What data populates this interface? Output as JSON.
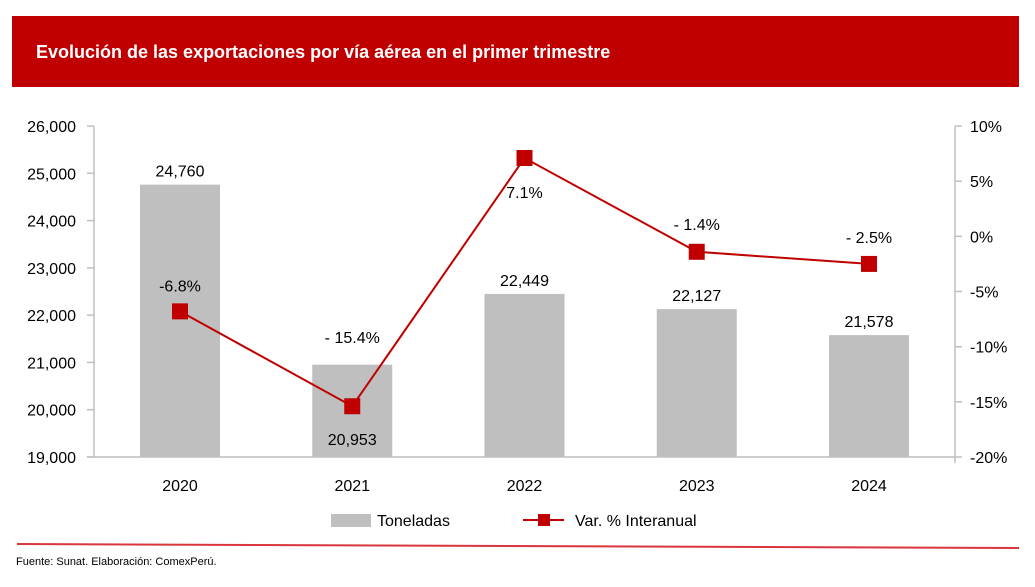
{
  "header": {
    "title": "Evolución de las exportaciones por vía aérea en el primer trimestre"
  },
  "footer": {
    "source": "Fuente: Sunat. Elaboración: ComexPerú."
  },
  "colors": {
    "header": "#c00000",
    "bars": "#bfbfbf",
    "line": "#c00000",
    "axis": "#bfbfbf"
  },
  "chart_data": {
    "type": "bar+line",
    "title": "Evolución de las exportaciones por vía aérea en el primer trimestre",
    "categories": [
      "2020",
      "2021",
      "2022",
      "2023",
      "2024"
    ],
    "series": [
      {
        "name": "Toneladas",
        "type": "bar",
        "axis": "left",
        "values": [
          24760,
          20953,
          22449,
          22127,
          21578
        ],
        "labels": [
          "24,760",
          "20,953",
          "22,449",
          "22,127",
          "21,578"
        ]
      },
      {
        "name": "Var. % Interanual",
        "type": "line",
        "axis": "right",
        "values": [
          -6.8,
          -15.4,
          7.1,
          -1.4,
          -2.5
        ],
        "labels": [
          "-6.8%",
          "- 15.4%",
          "7.1%",
          "- 1.4%",
          "- 2.5%"
        ]
      }
    ],
    "y_left": {
      "min": 19000,
      "max": 26000,
      "ticks": [
        19000,
        20000,
        21000,
        22000,
        23000,
        24000,
        25000,
        26000
      ],
      "tick_labels": [
        "19,000",
        "20,000",
        "21,000",
        "22,000",
        "23,000",
        "24,000",
        "25,000",
        "26,000"
      ]
    },
    "y_right": {
      "min": -20,
      "max": 10,
      "ticks": [
        -20,
        -15,
        -10,
        -5,
        0,
        5,
        10
      ],
      "tick_labels": [
        "-20%",
        "-15%",
        "-10%",
        "-5%",
        "0%",
        "5%",
        "10%"
      ]
    },
    "legend": {
      "position": "bottom",
      "items": [
        "Toneladas",
        "Var. % Interanual"
      ]
    },
    "grid": false
  }
}
